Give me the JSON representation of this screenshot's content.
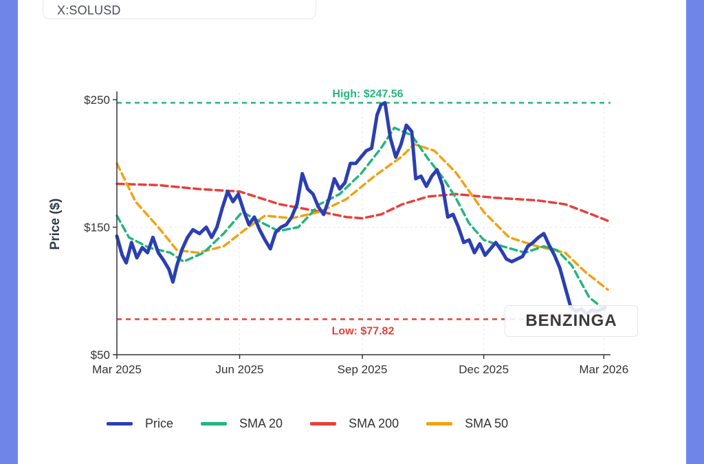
{
  "ticker": {
    "symbol": "X:SOLUSD"
  },
  "watermark": {
    "text": "BENZINGA"
  },
  "colors": {
    "price": "#2b3fb3",
    "sma20": "#22b67e",
    "sma200": "#e83f3a",
    "sma50": "#f2a210",
    "high": "#22b67e",
    "low": "#e83f3a",
    "axis": "#333333",
    "grid": "#e6e8ee"
  },
  "chart_data": {
    "type": "line",
    "title": "",
    "xlabel": "",
    "ylabel": "Price ($)",
    "ylim": [
      50,
      250
    ],
    "xlim": [
      "2025-03-01",
      "2026-03-06"
    ],
    "yticks": [
      {
        "value": 250,
        "label": "$250"
      },
      {
        "value": 150,
        "label": "$150"
      },
      {
        "value": 50,
        "label": "$50"
      }
    ],
    "xticks": [
      {
        "date": "2025-03-01",
        "label": "Mar 2025"
      },
      {
        "date": "2025-06-01",
        "label": "Jun 2025"
      },
      {
        "date": "2025-09-01",
        "label": "Sep 2025"
      },
      {
        "date": "2025-12-01",
        "label": "Dec 2025"
      },
      {
        "date": "2026-03-01",
        "label": "Mar 2026"
      }
    ],
    "annotations": {
      "high": {
        "value": 247.56,
        "label": "High: $247.56"
      },
      "low": {
        "value": 77.82,
        "label": "Low: $77.82"
      }
    },
    "legend": [
      "Price",
      "SMA 20",
      "SMA 200",
      "SMA 50"
    ],
    "series": [
      {
        "name": "Price",
        "key": "price",
        "points": [
          [
            "2025-03-01",
            143
          ],
          [
            "2025-03-05",
            128
          ],
          [
            "2025-03-08",
            122
          ],
          [
            "2025-03-12",
            138
          ],
          [
            "2025-03-16",
            126
          ],
          [
            "2025-03-20",
            134
          ],
          [
            "2025-03-24",
            130
          ],
          [
            "2025-03-28",
            142
          ],
          [
            "2025-04-01",
            130
          ],
          [
            "2025-04-05",
            124
          ],
          [
            "2025-04-09",
            117
          ],
          [
            "2025-04-12",
            107
          ],
          [
            "2025-04-15",
            120
          ],
          [
            "2025-04-19",
            133
          ],
          [
            "2025-04-23",
            142
          ],
          [
            "2025-04-27",
            148
          ],
          [
            "2025-05-02",
            145
          ],
          [
            "2025-05-07",
            150
          ],
          [
            "2025-05-11",
            142
          ],
          [
            "2025-05-15",
            150
          ],
          [
            "2025-05-19",
            165
          ],
          [
            "2025-05-23",
            178
          ],
          [
            "2025-05-27",
            170
          ],
          [
            "2025-05-31",
            176
          ],
          [
            "2025-06-04",
            163
          ],
          [
            "2025-06-08",
            152
          ],
          [
            "2025-06-12",
            158
          ],
          [
            "2025-06-16",
            148
          ],
          [
            "2025-06-20",
            140
          ],
          [
            "2025-06-24",
            133
          ],
          [
            "2025-06-28",
            146
          ],
          [
            "2025-07-02",
            150
          ],
          [
            "2025-07-06",
            152
          ],
          [
            "2025-07-10",
            158
          ],
          [
            "2025-07-14",
            168
          ],
          [
            "2025-07-18",
            192
          ],
          [
            "2025-07-22",
            180
          ],
          [
            "2025-07-26",
            176
          ],
          [
            "2025-07-30",
            166
          ],
          [
            "2025-08-03",
            160
          ],
          [
            "2025-08-07",
            172
          ],
          [
            "2025-08-11",
            188
          ],
          [
            "2025-08-15",
            180
          ],
          [
            "2025-08-19",
            185
          ],
          [
            "2025-08-23",
            200
          ],
          [
            "2025-08-27",
            200
          ],
          [
            "2025-08-31",
            205
          ],
          [
            "2025-09-04",
            210
          ],
          [
            "2025-09-08",
            212
          ],
          [
            "2025-09-12",
            238
          ],
          [
            "2025-09-15",
            246
          ],
          [
            "2025-09-18",
            247.56
          ],
          [
            "2025-09-22",
            220
          ],
          [
            "2025-09-26",
            205
          ],
          [
            "2025-09-30",
            215
          ],
          [
            "2025-10-04",
            230
          ],
          [
            "2025-10-08",
            225
          ],
          [
            "2025-10-11",
            188
          ],
          [
            "2025-10-15",
            190
          ],
          [
            "2025-10-19",
            182
          ],
          [
            "2025-10-23",
            190
          ],
          [
            "2025-10-27",
            195
          ],
          [
            "2025-10-31",
            183
          ],
          [
            "2025-11-04",
            158
          ],
          [
            "2025-11-08",
            160
          ],
          [
            "2025-11-12",
            150
          ],
          [
            "2025-11-16",
            138
          ],
          [
            "2025-11-20",
            140
          ],
          [
            "2025-11-24",
            130
          ],
          [
            "2025-11-28",
            137
          ],
          [
            "2025-12-02",
            128
          ],
          [
            "2025-12-06",
            133
          ],
          [
            "2025-12-10",
            138
          ],
          [
            "2025-12-14",
            132
          ],
          [
            "2025-12-18",
            125
          ],
          [
            "2025-12-22",
            123
          ],
          [
            "2025-12-26",
            125
          ],
          [
            "2025-12-30",
            127
          ],
          [
            "2026-01-03",
            135
          ],
          [
            "2026-01-07",
            138
          ],
          [
            "2026-01-11",
            142
          ],
          [
            "2026-01-15",
            145
          ],
          [
            "2026-01-19",
            136
          ],
          [
            "2026-01-23",
            128
          ],
          [
            "2026-01-27",
            118
          ],
          [
            "2026-01-31",
            103
          ],
          [
            "2026-02-04",
            88
          ],
          [
            "2026-02-08",
            84
          ],
          [
            "2026-02-12",
            86
          ],
          [
            "2026-02-16",
            82
          ],
          [
            "2026-02-20",
            85
          ],
          [
            "2026-02-24",
            84
          ],
          [
            "2026-02-28",
            86
          ],
          [
            "2026-03-02",
            87
          ]
        ]
      },
      {
        "name": "SMA 20",
        "key": "sma20",
        "points": [
          [
            "2025-03-01",
            159
          ],
          [
            "2025-03-10",
            142
          ],
          [
            "2025-03-25",
            134
          ],
          [
            "2025-04-10",
            130
          ],
          [
            "2025-04-20",
            123
          ],
          [
            "2025-05-05",
            130
          ],
          [
            "2025-05-20",
            145
          ],
          [
            "2025-06-03",
            162
          ],
          [
            "2025-06-15",
            155
          ],
          [
            "2025-06-30",
            147
          ],
          [
            "2025-07-15",
            150
          ],
          [
            "2025-07-31",
            168
          ],
          [
            "2025-08-15",
            176
          ],
          [
            "2025-08-31",
            192
          ],
          [
            "2025-09-15",
            212
          ],
          [
            "2025-09-25",
            228
          ],
          [
            "2025-10-08",
            222
          ],
          [
            "2025-10-20",
            204
          ],
          [
            "2025-11-01",
            188
          ],
          [
            "2025-11-10",
            173
          ],
          [
            "2025-11-20",
            153
          ],
          [
            "2025-12-01",
            140
          ],
          [
            "2025-12-15",
            135
          ],
          [
            "2026-01-01",
            130
          ],
          [
            "2026-01-15",
            135
          ],
          [
            "2026-01-25",
            132
          ],
          [
            "2026-02-05",
            120
          ],
          [
            "2026-02-18",
            95
          ],
          [
            "2026-03-02",
            85
          ]
        ]
      },
      {
        "name": "SMA 200",
        "key": "sma200",
        "points": [
          [
            "2025-03-01",
            184
          ],
          [
            "2025-04-01",
            183
          ],
          [
            "2025-05-01",
            180
          ],
          [
            "2025-06-01",
            178
          ],
          [
            "2025-07-01",
            168
          ],
          [
            "2025-08-01",
            162
          ],
          [
            "2025-08-20",
            158
          ],
          [
            "2025-09-01",
            157
          ],
          [
            "2025-09-15",
            160
          ],
          [
            "2025-10-01",
            168
          ],
          [
            "2025-10-20",
            174
          ],
          [
            "2025-11-10",
            176
          ],
          [
            "2025-12-10",
            173
          ],
          [
            "2026-01-10",
            171
          ],
          [
            "2026-01-31",
            168
          ],
          [
            "2026-02-20",
            160
          ],
          [
            "2026-03-04",
            155
          ]
        ]
      },
      {
        "name": "SMA 50",
        "key": "sma50",
        "points": [
          [
            "2025-03-01",
            200
          ],
          [
            "2025-03-15",
            170
          ],
          [
            "2025-04-01",
            150
          ],
          [
            "2025-04-15",
            132
          ],
          [
            "2025-05-01",
            130
          ],
          [
            "2025-05-20",
            135
          ],
          [
            "2025-06-05",
            148
          ],
          [
            "2025-06-20",
            159
          ],
          [
            "2025-07-10",
            157
          ],
          [
            "2025-07-31",
            162
          ],
          [
            "2025-08-20",
            172
          ],
          [
            "2025-09-10",
            190
          ],
          [
            "2025-09-30",
            205
          ],
          [
            "2025-10-10",
            215
          ],
          [
            "2025-10-25",
            210
          ],
          [
            "2025-11-10",
            193
          ],
          [
            "2025-12-01",
            162
          ],
          [
            "2025-12-20",
            142
          ],
          [
            "2026-01-10",
            135
          ],
          [
            "2026-01-31",
            130
          ],
          [
            "2026-02-15",
            115
          ],
          [
            "2026-03-04",
            101
          ]
        ]
      }
    ]
  }
}
